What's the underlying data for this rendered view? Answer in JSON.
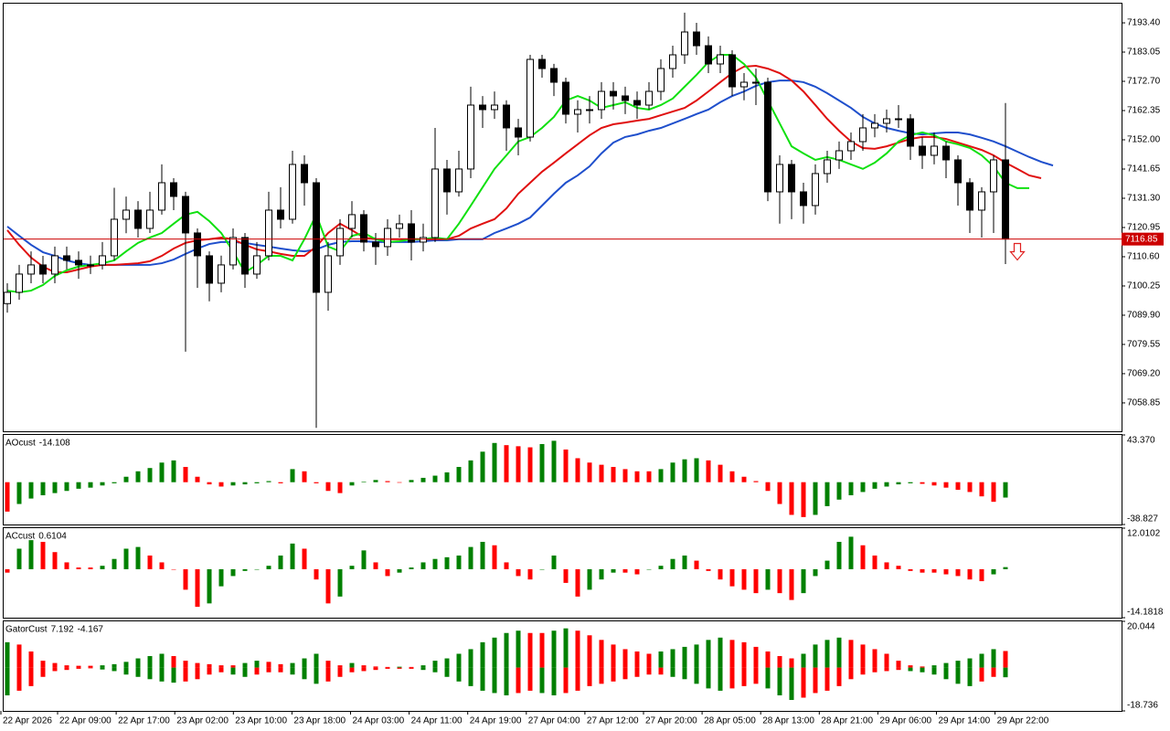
{
  "chart_data": [
    {
      "type": "candlestick",
      "up_color": "#ffffff",
      "down_color": "#000000",
      "price_line_color": "#cc0000",
      "ylim": [
        7048.8,
        7200.2
      ],
      "yticks": [
        {
          "value": 7193.4,
          "label": "7193.40"
        },
        {
          "value": 7183.05,
          "label": "7183.05"
        },
        {
          "value": 7172.7,
          "label": "7172.70"
        },
        {
          "value": 7162.35,
          "label": "7162.35"
        },
        {
          "value": 7152,
          "label": "7152.00"
        },
        {
          "value": 7141.65,
          "label": "7141.65"
        },
        {
          "value": 7131.3,
          "label": "7131.30"
        },
        {
          "value": 7120.95,
          "label": "7120.95"
        },
        {
          "value": 7110.6,
          "label": "7110.60"
        },
        {
          "value": 7100.25,
          "label": "7100.25"
        },
        {
          "value": 7089.9,
          "label": "7089.90"
        },
        {
          "value": 7079.55,
          "label": "7079.55"
        },
        {
          "value": 7069.2,
          "label": "7069.20"
        },
        {
          "value": 7058.85,
          "label": "7058.85"
        }
      ],
      "open": [
        7094,
        7098,
        7104.46,
        7107.7,
        7104.46,
        7110.93,
        7109.32,
        7107.7,
        7107.7,
        7110.93,
        7123.87,
        7127.1,
        7120.63,
        7127.1,
        7136.8,
        7131.95,
        7119.02,
        7110.93,
        7101.23,
        7107.7,
        7117.4,
        7104.46,
        7110.93,
        7127.1,
        7123.87,
        7143.27,
        7136.8,
        7098,
        7110.93,
        7120.63,
        7125.49,
        7115.78,
        7114.17,
        7120.63,
        7122.25,
        7115.78,
        7117.4,
        7141.66,
        7133.57,
        7141.66,
        7164.29,
        7162.68,
        7164.29,
        7156.21,
        7152.97,
        7180.46,
        7177.23,
        7172.38,
        7161.06,
        7162.68,
        7162.68,
        7169.14,
        7167.53,
        7165.91,
        7164.29,
        7169.14,
        7177.23,
        7182.08,
        7190.17,
        7185.31,
        7178.85,
        7182.08,
        7170.76,
        7172.38,
        7172.38,
        7133.57,
        7143.27,
        7133.57,
        7128.72,
        7140.04,
        7144.89,
        7148.12,
        7151.36,
        7156.21,
        7157.83,
        7159.44,
        7159.44,
        7149.74,
        7146.51,
        7149.74,
        7144.89,
        7136.8,
        7127.1,
        7133.57,
        7144.89
      ],
      "high": [
        7101.2,
        7107.7,
        7112.5,
        7110.9,
        7114.2,
        7114.2,
        7112.5,
        7111,
        7115.8,
        7135,
        7131.9,
        7130.3,
        7133.6,
        7143.3,
        7138.4,
        7133.6,
        7120.6,
        7112.5,
        7111,
        7120.6,
        7119,
        7115.8,
        7133.6,
        7135.2,
        7148.1,
        7146.5,
        7138.4,
        7115.8,
        7123.9,
        7130.3,
        7127.1,
        7119,
        7123.9,
        7125.5,
        7127.1,
        7122.3,
        7156.2,
        7144.9,
        7148.1,
        7170.8,
        7167.5,
        7169.1,
        7166,
        7159.4,
        7182.1,
        7182.1,
        7178.9,
        7174,
        7166,
        7167.5,
        7172.4,
        7172.4,
        7170.8,
        7169.1,
        7172.4,
        7180.5,
        7185.3,
        7197,
        7193.4,
        7188.6,
        7185.3,
        7183.7,
        7175.6,
        7177.2,
        7174,
        7146.5,
        7144.9,
        7136.8,
        7143.3,
        7148.1,
        7151.4,
        7154.6,
        7161.1,
        7161.1,
        7162.7,
        7164.3,
        7161.1,
        7152.9,
        7154.6,
        7151.4,
        7146.5,
        7138.4,
        7135.2,
        7146.5,
        7165
      ],
      "low": [
        7090.8,
        7095.4,
        7101.2,
        7101.2,
        7101.2,
        7106.1,
        7102.8,
        7104.5,
        7106.1,
        7109.3,
        7118.9,
        7117.4,
        7119,
        7125.5,
        7127.1,
        7077,
        7099.6,
        7094.8,
        7098,
        7106.1,
        7099.6,
        7102.8,
        7109.3,
        7120.6,
        7122.3,
        7128.7,
        7050,
        7091.5,
        7107.7,
        7117.4,
        7112.5,
        7107.7,
        7110.9,
        7117.4,
        7109.3,
        7112.5,
        7115.8,
        7125.5,
        7131.9,
        7138.4,
        7156.2,
        7159.4,
        7148.1,
        7146.5,
        7151.4,
        7174,
        7167.5,
        7157.8,
        7154.6,
        7157.8,
        7159.4,
        7162.7,
        7161.1,
        7159.4,
        7162.7,
        7166,
        7174,
        7178.9,
        7182.1,
        7175.6,
        7175.6,
        7167.5,
        7166,
        7164.3,
        7130.3,
        7122.3,
        7123.9,
        7122.3,
        7125.5,
        7136.8,
        7141.7,
        7144.9,
        7148.1,
        7152.9,
        7154.6,
        7156.2,
        7144.9,
        7141.7,
        7143.3,
        7138.4,
        7128.7,
        7119,
        7117.4,
        7119,
        7108
      ],
      "close": [
        7098,
        7104.46,
        7107.7,
        7104.46,
        7110.93,
        7109.32,
        7107.7,
        7107.7,
        7110.93,
        7123.87,
        7127.1,
        7120.63,
        7127.1,
        7136.8,
        7131.95,
        7119.02,
        7110.93,
        7101.23,
        7107.7,
        7117.4,
        7104.46,
        7110.93,
        7127.1,
        7123.87,
        7143.27,
        7136.8,
        7098,
        7110.93,
        7120.63,
        7125.49,
        7115.78,
        7114.17,
        7120.63,
        7122.25,
        7115.78,
        7117.4,
        7141.66,
        7133.57,
        7141.66,
        7164.29,
        7162.68,
        7164.29,
        7156.21,
        7152.97,
        7180.46,
        7177.23,
        7172.38,
        7161.06,
        7162.68,
        7162.68,
        7169.14,
        7167.53,
        7165.91,
        7164.29,
        7169.14,
        7177.23,
        7182.08,
        7190.17,
        7185.31,
        7178.85,
        7182.08,
        7170.76,
        7172.38,
        7172.38,
        7133.57,
        7143.27,
        7133.57,
        7128.72,
        7140.04,
        7144.89,
        7148.12,
        7151.36,
        7156.21,
        7157.83,
        7159.44,
        7159.44,
        7149.74,
        7146.51,
        7149.74,
        7144.89,
        7136.8,
        7127.1,
        7133.57,
        7144.89,
        7116.85
      ],
      "series": [
        {
          "color": "#1f4fcc",
          "values": [
            7121.3,
            7118,
            7114.8,
            7112.2,
            7110.9,
            7109.3,
            7108.3,
            7107.7,
            7107.7,
            7107.7,
            7107.7,
            7107.7,
            7107.7,
            7108.3,
            7109.6,
            7111.6,
            7113.5,
            7115.1,
            7115.8,
            7115.8,
            7115.5,
            7114.8,
            7114.2,
            7113.5,
            7112.9,
            7112.5,
            7113.2,
            7114.8,
            7115.8,
            7116.1,
            7116.1,
            7115.8,
            7115.8,
            7115.8,
            7115.8,
            7116.1,
            7116.4,
            7116.4,
            7116.8,
            7116.8,
            7116.8,
            7119,
            7120.6,
            7122.3,
            7124.5,
            7128.7,
            7132.9,
            7136.8,
            7139.4,
            7142.6,
            7147.2,
            7151,
            7153,
            7153.9,
            7155.2,
            7156.2,
            7157.8,
            7159.4,
            7161.1,
            7162.7,
            7165.3,
            7167.5,
            7169.1,
            7171.1,
            7172.4,
            7173,
            7173,
            7172.4,
            7170.8,
            7168.5,
            7165.9,
            7163.3,
            7160.1,
            7157.8,
            7156.2,
            7155.2,
            7154.3,
            7153.9,
            7154.3,
            7154.6,
            7154.6,
            7153.9,
            7152.7,
            7151.4,
            7149.7,
            7147.8,
            7145.9,
            7144.2,
            7142.9
          ]
        },
        {
          "color": "#e01010",
          "values": [
            7120,
            7114.8,
            7110.3,
            7107.1,
            7105.1,
            7105.1,
            7106.1,
            7107.1,
            7107.7,
            7107.7,
            7108,
            7108.3,
            7109,
            7110.9,
            7113.5,
            7115.5,
            7116.4,
            7116.8,
            7117.4,
            7116.8,
            7114.8,
            7113.2,
            7112.5,
            7111.6,
            7110.9,
            7110.9,
            7114.2,
            7119,
            7122.3,
            7120,
            7117.4,
            7116.8,
            7116.8,
            7116.8,
            7116.8,
            7116.8,
            7116.8,
            7116.8,
            7118,
            7120.6,
            7122.3,
            7123.9,
            7127.7,
            7132.9,
            7136.8,
            7140.7,
            7143.9,
            7147.2,
            7150.4,
            7153.6,
            7156.2,
            7157.5,
            7158.1,
            7158.8,
            7159.4,
            7160.7,
            7162,
            7163.3,
            7165.9,
            7169.1,
            7172.4,
            7175.6,
            7177.9,
            7178.2,
            7177.2,
            7175.6,
            7173,
            7169.1,
            7164.3,
            7159.4,
            7155.2,
            7151.4,
            7149.1,
            7148.8,
            7149.7,
            7151,
            7152.3,
            7153,
            7153,
            7152.3,
            7151,
            7149.7,
            7148.4,
            7146.5,
            7143.9,
            7141.7,
            7139.4,
            7138.4,
            null
          ]
        },
        {
          "color": "#10e010",
          "values": [
            7098.6,
            7098,
            7098.6,
            7100.6,
            7103.8,
            7105.8,
            7107.1,
            7107.7,
            7108.3,
            7109.3,
            7112.5,
            7115.5,
            7117.4,
            7119,
            7122.3,
            7125.5,
            7126.5,
            7123.2,
            7119,
            7112.5,
            7105.1,
            7107.7,
            7110.9,
            7110.9,
            7109.3,
            7116.8,
            7125.5,
            7114.2,
            7112.5,
            7118,
            7119,
            7116.8,
            7115.8,
            7116.1,
            7116.8,
            7116.8,
            7117.4,
            7116.8,
            7122.3,
            7128.7,
            7135.2,
            7141.7,
            7146.5,
            7151.4,
            7153,
            7156.2,
            7160.1,
            7165.9,
            7167.5,
            7165.9,
            7163.3,
            7164.3,
            7165.3,
            7163.3,
            7162.7,
            7164.3,
            7166.6,
            7170.8,
            7175,
            7179.5,
            7182.1,
            7182.1,
            7178.8,
            7174,
            7165.9,
            7157.8,
            7149.7,
            7147.2,
            7144.9,
            7145.9,
            7144.9,
            7143.3,
            7141.7,
            7143.9,
            7147.2,
            7151.4,
            7153.6,
            7154.6,
            7153.6,
            7151.4,
            7150.4,
            7149.1,
            7146.5,
            7142.6,
            7136.8,
            7134.9,
            7134.9,
            null,
            null
          ]
        }
      ]
    },
    {
      "type": "bar",
      "title": "AOcust",
      "up_color": "#008000",
      "down_color": "#ff0000",
      "ylim": [
        -38.827,
        43.37
      ],
      "yticks": [
        {
          "value": 43.37,
          "label": "43.370"
        },
        -38.827
      ],
      "values": [
        -27,
        -20,
        -15,
        -12,
        -10,
        -8,
        -6,
        -5,
        -3,
        -1,
        5,
        10,
        13,
        18,
        20,
        14,
        5,
        -2,
        -4,
        -3,
        -2,
        -1,
        1,
        -1,
        12,
        10,
        -1,
        -8,
        -10,
        -3,
        0.5,
        2,
        1,
        -0.5,
        2,
        4,
        6,
        9,
        14,
        20,
        28,
        36,
        34,
        33,
        32,
        35,
        38,
        30,
        22,
        18,
        16,
        14,
        12,
        10,
        10,
        12,
        18,
        21,
        22,
        20,
        16,
        10,
        5,
        1,
        -8,
        -20,
        -30,
        -32,
        -30,
        -22,
        -16,
        -12,
        -9,
        -6,
        -4,
        -2,
        -1,
        -1.5,
        -3,
        -5,
        -7,
        -9,
        -13,
        -18,
        -14.108
      ]
    },
    {
      "type": "bar",
      "title": "ACcust",
      "up_color": "#008000",
      "down_color": "#ff0000",
      "ylim": [
        -14.1818,
        12.0102
      ],
      "yticks": [
        12.0102,
        -14.1818
      ],
      "values": [
        -1,
        6,
        8.5,
        8,
        5,
        2,
        0.5,
        0.5,
        1,
        3,
        6,
        6.5,
        4,
        2,
        0,
        -6,
        -11,
        -10,
        -5,
        -2,
        -0.5,
        0,
        1,
        4,
        7.5,
        6,
        -3,
        -10,
        -8,
        1,
        5.5,
        2,
        -2,
        -1,
        0.5,
        2,
        3,
        3.5,
        4,
        6.5,
        8,
        7,
        2,
        -2,
        -3,
        0,
        4,
        -4,
        -8,
        -6,
        -3,
        -1,
        -1,
        -1.5,
        0,
        1,
        3,
        4,
        2.5,
        -0.5,
        -3,
        -5,
        -6,
        -7,
        -6,
        -7,
        -9,
        -7,
        -2,
        2.5,
        8,
        9.5,
        7,
        4,
        2,
        1,
        -0.5,
        -1,
        -1,
        -1.5,
        -2,
        -3,
        -3.5,
        -1.5,
        0.6104
      ]
    },
    {
      "type": "gator",
      "title": "GatorCust",
      "up_color": "#008000",
      "down_color": "#ff0000",
      "ylim": [
        -18.736,
        20.044
      ],
      "yticks": [
        20.044,
        -18.736
      ],
      "upper": [
        11,
        10,
        7,
        3,
        2,
        1,
        0.8,
        0.8,
        1,
        1.5,
        2.5,
        4,
        5,
        6,
        5,
        3,
        2,
        1.5,
        1,
        1,
        2,
        3,
        2.5,
        1.5,
        2,
        4,
        6,
        3,
        1,
        2,
        1,
        0.5,
        0.3,
        0.4,
        0.3,
        1,
        3,
        4,
        6,
        8,
        11,
        13,
        15,
        16,
        15,
        15,
        16,
        17,
        16,
        14,
        12,
        10,
        8,
        7,
        6,
        7,
        8,
        9,
        10,
        12,
        13,
        12,
        11,
        9,
        7,
        5,
        4,
        6,
        10,
        12,
        13,
        12,
        10,
        8,
        6,
        3,
        1,
        0.5,
        1,
        2,
        3,
        4,
        6,
        8,
        7.192
      ],
      "lower": [
        -12,
        -10,
        -8,
        -4,
        -1.5,
        -1,
        -0.5,
        -0.3,
        -0.8,
        -1.5,
        -3,
        -4,
        -5,
        -6,
        -6.5,
        -6,
        -5,
        -3,
        -2,
        -3,
        -4,
        -3,
        -2,
        -2,
        -3,
        -5,
        -7,
        -6,
        -4,
        -2,
        -1.5,
        -1,
        -0.5,
        -0.5,
        -0.5,
        -1,
        -2,
        -4,
        -6,
        -8,
        -10,
        -11,
        -12,
        -11,
        -10,
        -11,
        -12,
        -11,
        -10,
        -8,
        -7,
        -6,
        -5,
        -4,
        -3,
        -3,
        -4,
        -5,
        -7,
        -9,
        -10,
        -9,
        -8,
        -7,
        -9,
        -12,
        -14,
        -13,
        -11,
        -10,
        -8,
        -5,
        -3,
        -2,
        -1.5,
        -1,
        -1.5,
        -2,
        -3,
        -5,
        -7,
        -8,
        -6,
        -4,
        -4.167
      ]
    }
  ],
  "time_axis": [
    "22 Apr 2026",
    "22 Apr 09:00",
    "22 Apr 17:00",
    "23 Apr 02:00",
    "23 Apr 10:00",
    "23 Apr 18:00",
    "24 Apr 03:00",
    "24 Apr 11:00",
    "24 Apr 19:00",
    "27 Apr 04:00",
    "27 Apr 12:00",
    "27 Apr 20:00",
    "28 Apr 05:00",
    "28 Apr 13:00",
    "28 Apr 21:00",
    "29 Apr 06:00",
    "29 Apr 14:00",
    "29 Apr 22:00"
  ]
}
